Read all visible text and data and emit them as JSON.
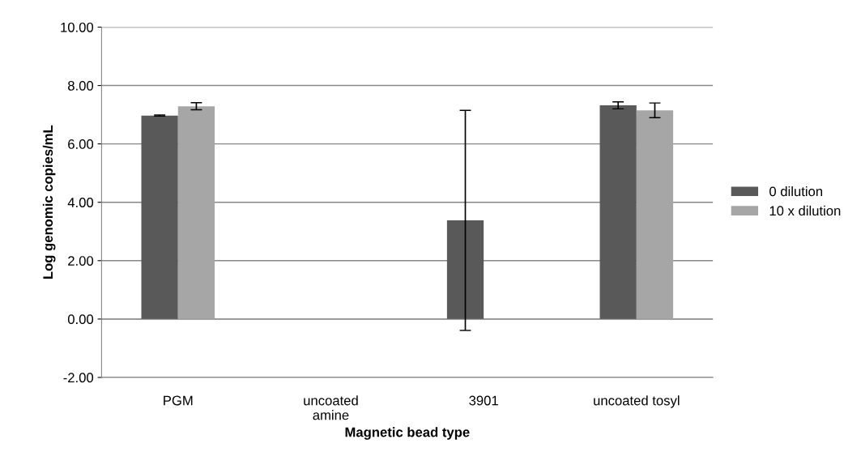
{
  "chart_data": {
    "type": "bar",
    "xlabel": "Magnetic bead type",
    "ylabel": "Log genomic copies/mL",
    "categories": [
      "PGM",
      "uncoated\namine",
      "3901",
      "uncoated tosyl"
    ],
    "series": [
      {
        "name": "0 dilution",
        "color": "#595959",
        "values": [
          6.97,
          0,
          3.38,
          7.32
        ],
        "errors": [
          0.02,
          null,
          3.77,
          0.12
        ]
      },
      {
        "name": "10 x dilution",
        "color": "#a6a6a6",
        "values": [
          7.29,
          0,
          0,
          7.15
        ],
        "errors": [
          0.12,
          null,
          null,
          0.25
        ]
      }
    ],
    "ylim": [
      -2,
      10
    ],
    "yticks": [
      {
        "value": -2,
        "label": "-2.00"
      },
      {
        "value": 0,
        "label": "0.00"
      },
      {
        "value": 2,
        "label": "2.00"
      },
      {
        "value": 4,
        "label": "4.00"
      },
      {
        "value": 6,
        "label": "6.00"
      },
      {
        "value": 8,
        "label": "8.00"
      },
      {
        "value": 10,
        "label": "10.00"
      }
    ],
    "grid": "y",
    "legend": "right"
  }
}
